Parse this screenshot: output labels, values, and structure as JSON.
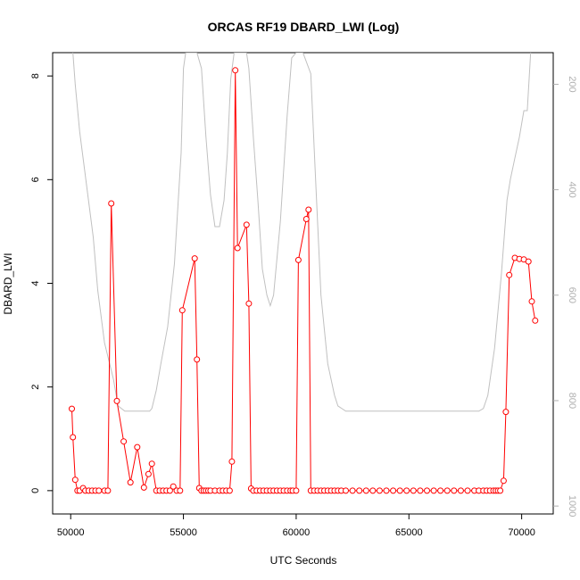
{
  "chart_data": {
    "type": "line",
    "title": "ORCAS RF19 DBARD_LWI (Log)",
    "xlabel": "UTC Seconds",
    "ylabel": "DBARD_LWI",
    "xlim": [
      49200,
      71400
    ],
    "ylim": [
      -0.45,
      8.45
    ],
    "x_ticks": [
      50000,
      55000,
      60000,
      65000,
      70000
    ],
    "y_ticks": [
      0,
      2,
      4,
      6,
      8
    ],
    "y2_ticks": [
      200,
      400,
      600,
      800,
      1000
    ],
    "y2lim": [
      1015,
      140
    ],
    "grid": false,
    "series": [
      {
        "color": "#ff0000",
        "style": "line-points",
        "x": [
          50050,
          50100,
          50200,
          50300,
          50400,
          50550,
          50650,
          50800,
          50950,
          51100,
          51250,
          51500,
          51650,
          51800,
          52050,
          52350,
          52650,
          52950,
          53250,
          53450,
          53600,
          53800,
          53950,
          54100,
          54250,
          54400,
          54550,
          54700,
          54850,
          54950,
          55500,
          55600,
          55700,
          55800,
          55900,
          56000,
          56100,
          56200,
          56400,
          56600,
          56750,
          56900,
          57050,
          57150,
          57300,
          57400,
          57800,
          57900,
          58000,
          58100,
          58250,
          58400,
          58550,
          58700,
          58850,
          59000,
          59150,
          59300,
          59450,
          59600,
          59750,
          59850,
          60000,
          60100,
          60450,
          60550,
          60650,
          60800,
          60950,
          61100,
          61250,
          61400,
          61550,
          61700,
          61850,
          62000,
          62200,
          62500,
          62800,
          63100,
          63400,
          63700,
          64000,
          64300,
          64600,
          64900,
          65200,
          65500,
          65800,
          66100,
          66400,
          66700,
          67000,
          67300,
          67600,
          67900,
          68100,
          68300,
          68450,
          68600,
          68750,
          68850,
          68950,
          69050,
          69200,
          69300,
          69450,
          69700,
          69900,
          70100,
          70300,
          70450,
          70600
        ],
        "values": [
          1.58,
          1.03,
          0.21,
          0.0,
          0.0,
          0.05,
          0.0,
          0.0,
          0.0,
          0.0,
          0.0,
          0.0,
          0.0,
          5.54,
          1.73,
          0.95,
          0.16,
          0.84,
          0.06,
          0.32,
          0.52,
          0.0,
          0.0,
          0.0,
          0.0,
          0.0,
          0.08,
          0.0,
          0.0,
          3.48,
          4.48,
          2.53,
          0.05,
          0.0,
          0.0,
          0.0,
          0.0,
          0.0,
          0.0,
          0.0,
          0.0,
          0.0,
          0.0,
          0.56,
          8.11,
          4.68,
          5.13,
          3.61,
          0.04,
          0.0,
          0.0,
          0.0,
          0.0,
          0.0,
          0.0,
          0.0,
          0.0,
          0.0,
          0.0,
          0.0,
          0.0,
          0.0,
          0.0,
          4.45,
          5.24,
          5.42,
          0.0,
          0.0,
          0.0,
          0.0,
          0.0,
          0.0,
          0.0,
          0.0,
          0.0,
          0.0,
          0.0,
          0.0,
          0.0,
          0.0,
          0.0,
          0.0,
          0.0,
          0.0,
          0.0,
          0.0,
          0.0,
          0.0,
          0.0,
          0.0,
          0.0,
          0.0,
          0.0,
          0.0,
          0.0,
          0.0,
          0.0,
          0.0,
          0.0,
          0.0,
          0.0,
          0.0,
          0.0,
          0.0,
          0.19,
          1.52,
          4.16,
          4.49,
          4.47,
          4.46,
          4.42,
          3.65,
          3.28
        ]
      },
      {
        "color": "#c0c0c0",
        "style": "line",
        "axis": "right",
        "x": [
          50100,
          50200,
          50400,
          50700,
          51000,
          51200,
          51500,
          51900,
          52100,
          52400,
          52800,
          53200,
          53500,
          53600,
          53800,
          54000,
          54300,
          54600,
          54900,
          55000,
          55100,
          55500,
          55600,
          55800,
          56000,
          56200,
          56400,
          56600,
          56800,
          56950,
          57100,
          57250,
          57500,
          57700,
          57800,
          57900,
          58100,
          58300,
          58500,
          58700,
          58850,
          59000,
          59300,
          59600,
          59800,
          60000,
          60100,
          60300,
          60650,
          60850,
          61100,
          61400,
          61700,
          61850,
          62200,
          62600,
          63000,
          63500,
          64000,
          65000,
          66000,
          67000,
          67800,
          68100,
          68300,
          68500,
          68800,
          69100,
          69350,
          69500,
          69700,
          69900,
          70100,
          70250,
          70400
        ],
        "values": [
          140,
          200,
          290,
          390,
          490,
          590,
          690,
          760,
          810,
          820,
          820,
          820,
          820,
          815,
          780,
          730,
          660,
          540,
          330,
          170,
          140,
          140,
          140,
          170,
          300,
          410,
          470,
          470,
          420,
          330,
          190,
          140,
          140,
          140,
          140,
          170,
          300,
          420,
          550,
          600,
          620,
          600,
          460,
          260,
          150,
          140,
          140,
          140,
          180,
          370,
          600,
          730,
          790,
          810,
          820,
          820,
          820,
          820,
          820,
          820,
          820,
          820,
          820,
          820,
          815,
          790,
          700,
          560,
          420,
          380,
          340,
          300,
          250,
          250,
          140
        ]
      }
    ]
  }
}
